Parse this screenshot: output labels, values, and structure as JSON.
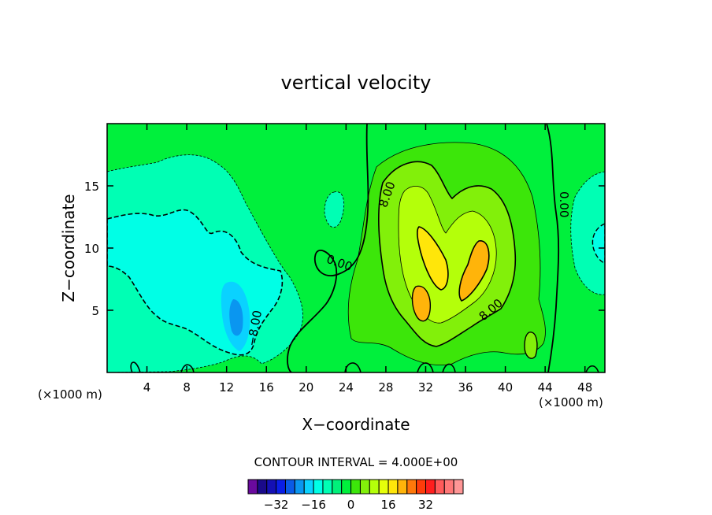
{
  "chart_data": {
    "type": "contour",
    "title": "vertical velocity",
    "xlabel": "X−coordinate",
    "ylabel": "Z−coordinate",
    "x_unit_left": "(×1000 m)",
    "x_unit_right": "(×1000 m)",
    "xlim": [
      0,
      50
    ],
    "ylim": [
      0,
      20
    ],
    "x_ticks": [
      4,
      8,
      12,
      16,
      20,
      24,
      28,
      32,
      36,
      40,
      44,
      48
    ],
    "y_ticks": [
      5,
      10,
      15
    ],
    "x_tick_labels": [
      "4",
      "8",
      "12",
      "16",
      "20",
      "24",
      "28",
      "32",
      "36",
      "40",
      "44",
      "48"
    ],
    "y_tick_labels": [
      "5",
      "10",
      "15"
    ],
    "contour_interval_text": "CONTOUR INTERVAL = 4.000E+00",
    "contour_labels": [
      {
        "text": "8.00",
        "x": 28.5,
        "y": 14.2,
        "angle": -70
      },
      {
        "text": "0.00",
        "x": 45.5,
        "y": 13.5,
        "angle": 90
      },
      {
        "text": "0.00",
        "x": 23.2,
        "y": 8.5,
        "angle": 20
      },
      {
        "text": "−8.00",
        "x": 15.2,
        "y": 3.5,
        "angle": -80
      },
      {
        "text": "8.00",
        "x": 38.8,
        "y": 4.8,
        "angle": -40
      }
    ],
    "features": [
      {
        "kind": "updraft",
        "x": 32,
        "y": 8,
        "max": 20
      },
      {
        "kind": "downdraft",
        "x": 13,
        "y": 5,
        "min": -12
      }
    ],
    "colorbar": {
      "colors": [
        "#6a0a9e",
        "#1a0a8a",
        "#1410b4",
        "#0a1ee6",
        "#0a5ae6",
        "#0a96f0",
        "#0ad2ff",
        "#00ffe6",
        "#00ffb4",
        "#00f07a",
        "#00f03c",
        "#3ce60a",
        "#82f00a",
        "#b4ff0a",
        "#e6ff0a",
        "#ffe60a",
        "#ffb40a",
        "#ff780a",
        "#ff3c0a",
        "#ff1e1e",
        "#ff5a5a",
        "#ff7878",
        "#ff9696"
      ],
      "ticks": [
        -32,
        -16,
        0,
        16,
        32
      ],
      "tick_labels": [
        "−32",
        "−16",
        "0",
        "16",
        "32"
      ],
      "vmin": -44,
      "vmax": 48
    }
  }
}
